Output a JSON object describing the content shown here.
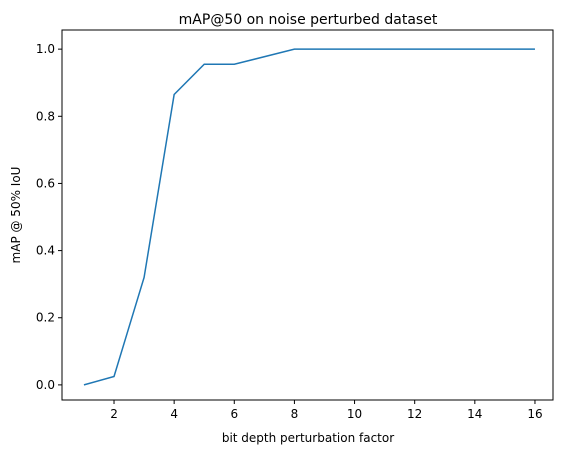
{
  "chart_data": {
    "type": "line",
    "title": "mAP@50 on noise perturbed dataset",
    "x_label": "bit depth perturbation factor",
    "y_label": "mAP @ 50% IoU",
    "x": [
      1,
      2,
      3,
      4,
      5,
      6,
      8,
      16
    ],
    "series": [
      {
        "color": "#1f77b4",
        "values": [
          0.0,
          0.025,
          0.32,
          0.865,
          0.955,
          0.955,
          1.0,
          1.0
        ]
      }
    ],
    "xlim": [
      0.27,
      16.6
    ],
    "ylim": [
      -0.045,
      1.057
    ],
    "xticks": [
      2,
      4,
      6,
      8,
      10,
      12,
      14,
      16
    ],
    "yticks": [
      {
        "value": 0,
        "label": "0.0"
      },
      {
        "value": 0.2,
        "label": "0.2"
      },
      {
        "value": 0.4,
        "label": "0.4"
      },
      {
        "value": 0.6,
        "label": "0.6"
      },
      {
        "value": 0.8,
        "label": "0.8"
      },
      {
        "value": 1,
        "label": "1.0"
      }
    ]
  }
}
